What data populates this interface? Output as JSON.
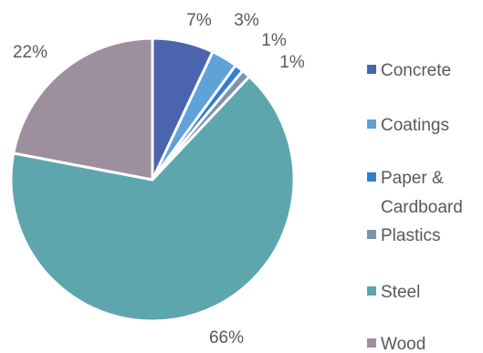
{
  "chart_data": {
    "type": "pie",
    "title": "",
    "legend_position": "right",
    "start_angle_deg": 0,
    "direction": "clockwise",
    "slices": [
      {
        "name": "Concrete",
        "value": 7,
        "label": "7%",
        "color": "#4a65ad"
      },
      {
        "name": "Coatings",
        "value": 3,
        "label": "3%",
        "color": "#5fa2d8"
      },
      {
        "name": "Paper & Cardboard",
        "value": 1,
        "label": "1%",
        "color": "#2f7fd1"
      },
      {
        "name": "Plastics",
        "value": 1,
        "label": "1%",
        "color": "#7f93ad"
      },
      {
        "name": "Steel",
        "value": 66,
        "label": "66%",
        "color": "#5ea6ae"
      },
      {
        "name": "Wood",
        "value": 22,
        "label": "22%",
        "color": "#9d8f9d"
      }
    ],
    "legend": [
      {
        "lines": [
          "Concrete"
        ],
        "color": "#4a65ad"
      },
      {
        "lines": [
          "Coatings"
        ],
        "color": "#5fa2d8"
      },
      {
        "lines": [
          "Paper &",
          "Cardboard"
        ],
        "color": "#2f7fd1"
      },
      {
        "lines": [
          "Plastics"
        ],
        "color": "#7f93ad"
      },
      {
        "lines": [
          "Steel"
        ],
        "color": "#5ea6ae"
      },
      {
        "lines": [
          "Wood"
        ],
        "color": "#9d8f9d"
      }
    ]
  }
}
